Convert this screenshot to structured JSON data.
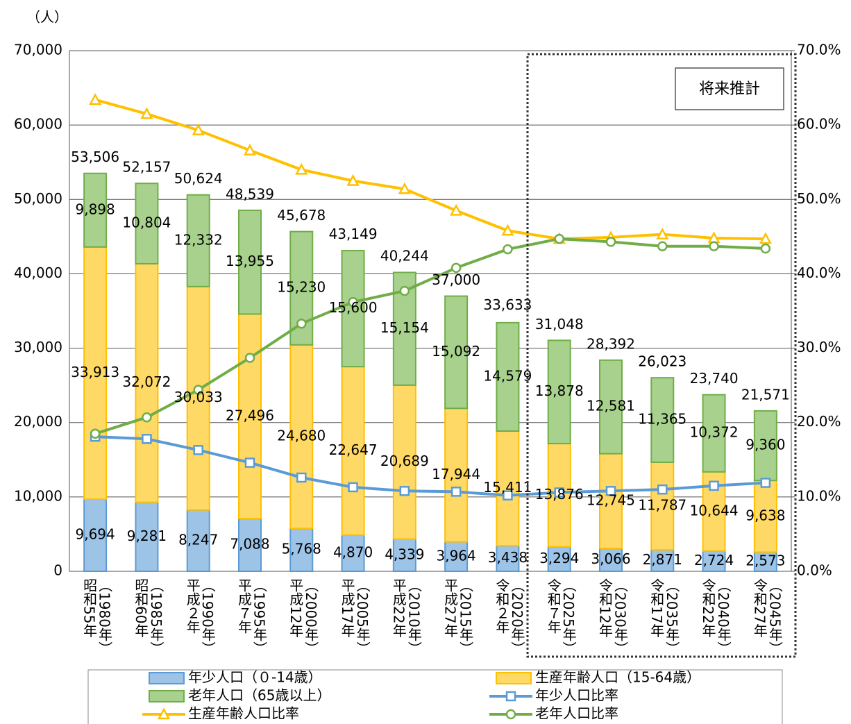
{
  "chart_data": {
    "type": "bar",
    "stacked": true,
    "y_label": "（人）",
    "annotation": "将来推計",
    "categories": [
      "昭和55年",
      "昭和60年",
      "平成２年",
      "平成７年",
      "平成12年",
      "平成17年",
      "平成22年",
      "平成27年",
      "令和２年",
      "令和７年",
      "令和12年",
      "令和17年",
      "令和22年",
      "令和27年"
    ],
    "category_years": [
      "（1980年）",
      "（1985年）",
      "（1990年）",
      "（1995年）",
      "（2000年）",
      "（2005年）",
      "（2010年）",
      "（2015年）",
      "（2020年）",
      "（2025年）",
      "（2030年）",
      "（2035年）",
      "（2040年）",
      "（2045年）"
    ],
    "ylim": [
      0,
      70000
    ],
    "yticks": [
      0,
      {
        "value": 10000,
        "label": "10,000"
      },
      {
        "value": 20000,
        "label": "20,000"
      },
      {
        "value": 30000,
        "label": "30,000"
      },
      {
        "value": 40000,
        "label": "40,000"
      },
      {
        "value": 50000,
        "label": "50,000"
      },
      {
        "value": 60000,
        "label": "60,000"
      },
      {
        "value": 70000,
        "label": "70,000"
      }
    ],
    "y2lim": [
      0,
      70
    ],
    "y2ticks": [
      {
        "value": 0,
        "label": "0.0%"
      },
      {
        "value": 10,
        "label": "10.0%"
      },
      {
        "value": 20,
        "label": "20.0%"
      },
      {
        "value": 30,
        "label": "30.0%"
      },
      {
        "value": 40,
        "label": "40.0%"
      },
      {
        "value": 50,
        "label": "50.0%"
      },
      {
        "value": 60,
        "label": "60.0%"
      },
      {
        "value": 70,
        "label": "70.0%"
      }
    ],
    "grid": true,
    "series": [
      {
        "name": "年少人口（０-14歳）",
        "type": "bar",
        "color": "#9dc3e6",
        "edge": "#5b9bd5",
        "values": [
          9694,
          9281,
          8247,
          7088,
          5768,
          4870,
          4339,
          3964,
          3438,
          3294,
          3066,
          2871,
          2724,
          2573
        ],
        "value_labels": [
          "9,694",
          "9,281",
          "8,247",
          "7,088",
          "5,768",
          "4,870",
          "4,339",
          "3,964",
          "3,438",
          "3,294",
          "3,066",
          "2,871",
          "2,724",
          "2,573"
        ]
      },
      {
        "name": "生産年齢人口（15-64歳）",
        "type": "bar",
        "color": "#ffd966",
        "edge": "#ffc000",
        "values": [
          33913,
          32072,
          30033,
          27496,
          24680,
          22647,
          20689,
          17944,
          15411,
          13876,
          12745,
          11787,
          10644,
          9638
        ],
        "value_labels": [
          "33,913",
          "32,072",
          "30,033",
          "27,496",
          "24,680",
          "22,647",
          "20,689",
          "17,944",
          "15,411",
          "13,876",
          "12,745",
          "11,787",
          "10,644",
          "9,638"
        ]
      },
      {
        "name": "老年人口（65歳以上）",
        "type": "bar",
        "color": "#a9d18e",
        "edge": "#70ad47",
        "values": [
          9898,
          10804,
          12332,
          13955,
          15230,
          15600,
          15154,
          15092,
          14579,
          13878,
          12581,
          11365,
          10372,
          9360
        ],
        "value_labels": [
          "9,898",
          "10,804",
          "12,332",
          "13,955",
          "15,230",
          "15,600",
          "15,154",
          "15,092",
          "14,579",
          "13,878",
          "12,581",
          "11,365",
          "10,372",
          "9,360"
        ]
      },
      {
        "name": "年少人口比率",
        "type": "line",
        "axis": "y2",
        "marker": "square",
        "color": "#5b9bd5",
        "values": [
          18.1,
          17.8,
          16.3,
          14.6,
          12.6,
          11.3,
          10.8,
          10.7,
          10.2,
          10.6,
          10.8,
          11.0,
          11.5,
          11.9
        ]
      },
      {
        "name": "生産年齢人口比率",
        "type": "line",
        "axis": "y2",
        "marker": "triangle",
        "color": "#ffc000",
        "values": [
          63.4,
          61.5,
          59.3,
          56.6,
          54.0,
          52.5,
          51.4,
          48.5,
          45.8,
          44.7,
          44.9,
          45.3,
          44.8,
          44.7
        ]
      },
      {
        "name": "老年人口比率",
        "type": "line",
        "axis": "y2",
        "marker": "circle",
        "color": "#70ad47",
        "values": [
          18.5,
          20.7,
          24.4,
          28.7,
          33.3,
          36.2,
          37.7,
          40.8,
          43.3,
          44.7,
          44.3,
          43.7,
          43.7,
          43.4
        ]
      }
    ],
    "totals": {
      "color": "#ff0000",
      "values": [
        53506,
        52157,
        50624,
        48539,
        45678,
        43149,
        40244,
        37000,
        33633,
        31048,
        28392,
        26023,
        23740,
        21571
      ],
      "value_labels": [
        "53,506",
        "52,157",
        "50,624",
        "48,539",
        "45,678",
        "43,149",
        "40,244",
        "37,000",
        "33,633",
        "31,048",
        "28,392",
        "26,023",
        "23,740",
        "21,571"
      ]
    }
  }
}
